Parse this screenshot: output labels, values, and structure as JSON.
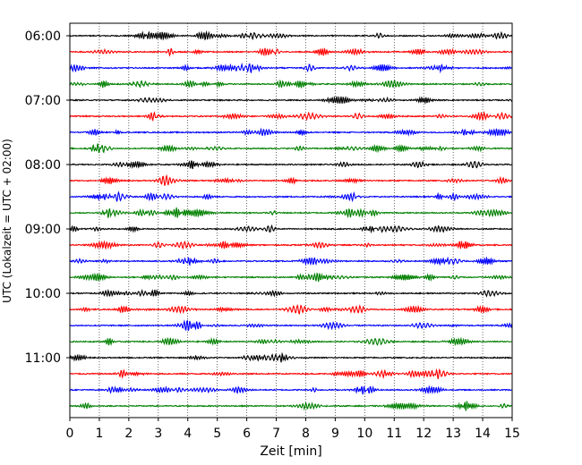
{
  "chart_data": {
    "type": "line",
    "title": "",
    "xlabel": "Zeit  [min]",
    "ylabel": "UTC (Lokalzeit = UTC + 02:00)",
    "x_ticks": [
      "0",
      "1",
      "2",
      "3",
      "4",
      "5",
      "6",
      "7",
      "8",
      "9",
      "10",
      "11",
      "12",
      "13",
      "14",
      "15"
    ],
    "xlim": [
      0,
      15
    ],
    "y_ticks": [
      "06:00",
      "07:00",
      "08:00",
      "09:00",
      "10:00",
      "11:00"
    ],
    "trace_interval_min": 15,
    "trace_start": "06:00",
    "trace_count": 24,
    "trace_colors": [
      "#000000",
      "#ff0000",
      "#0000ff",
      "#008000"
    ],
    "grid": "vertical dotted at each minute",
    "series": [
      {
        "start": "06:00",
        "color_index": 0
      },
      {
        "start": "06:15",
        "color_index": 1
      },
      {
        "start": "06:30",
        "color_index": 2
      },
      {
        "start": "06:45",
        "color_index": 3
      },
      {
        "start": "07:00",
        "color_index": 0
      },
      {
        "start": "07:15",
        "color_index": 1
      },
      {
        "start": "07:30",
        "color_index": 2
      },
      {
        "start": "07:45",
        "color_index": 3
      },
      {
        "start": "08:00",
        "color_index": 0
      },
      {
        "start": "08:15",
        "color_index": 1
      },
      {
        "start": "08:30",
        "color_index": 2
      },
      {
        "start": "08:45",
        "color_index": 3
      },
      {
        "start": "09:00",
        "color_index": 0
      },
      {
        "start": "09:15",
        "color_index": 1
      },
      {
        "start": "09:30",
        "color_index": 2
      },
      {
        "start": "09:45",
        "color_index": 3
      },
      {
        "start": "10:00",
        "color_index": 0
      },
      {
        "start": "10:15",
        "color_index": 1
      },
      {
        "start": "10:30",
        "color_index": 2
      },
      {
        "start": "10:45",
        "color_index": 3
      },
      {
        "start": "11:00",
        "color_index": 0
      },
      {
        "start": "11:15",
        "color_index": 1
      },
      {
        "start": "11:30",
        "color_index": 2
      },
      {
        "start": "11:45",
        "color_index": 3
      }
    ]
  }
}
